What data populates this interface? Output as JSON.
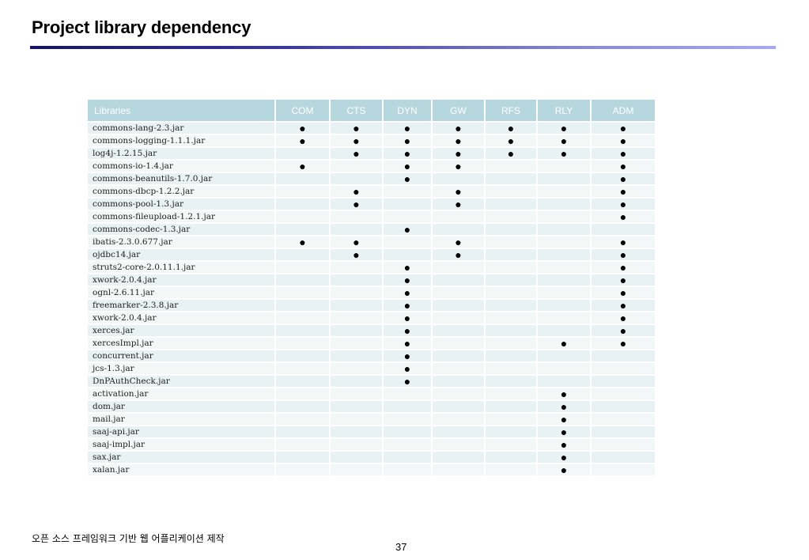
{
  "slide": {
    "title": "Project library dependency",
    "footer": "오픈 소스 프레임워크 기반 웹 어플리케이션 제작",
    "page_number": "37"
  },
  "table": {
    "headers": [
      "Libraries",
      "COM",
      "CTS",
      "DYN",
      "GW",
      "RFS",
      "RLY",
      "ADM"
    ],
    "mark_symbol": "●",
    "rows": [
      {
        "library": "commons-lang-2.3.jar",
        "marks": [
          true,
          true,
          true,
          true,
          true,
          true,
          true
        ]
      },
      {
        "library": "commons-logging-1.1.1.jar",
        "marks": [
          true,
          true,
          true,
          true,
          true,
          true,
          true
        ]
      },
      {
        "library": "log4j-1.2.15.jar",
        "marks": [
          false,
          true,
          true,
          true,
          true,
          true,
          true
        ]
      },
      {
        "library": "commons-io-1.4.jar",
        "marks": [
          true,
          false,
          true,
          true,
          false,
          false,
          true
        ]
      },
      {
        "library": "commons-beanutils-1.7.0.jar",
        "marks": [
          false,
          false,
          true,
          false,
          false,
          false,
          true
        ]
      },
      {
        "library": "commons-dbcp-1.2.2.jar",
        "marks": [
          false,
          true,
          false,
          true,
          false,
          false,
          true
        ]
      },
      {
        "library": "commons-pool-1.3.jar",
        "marks": [
          false,
          true,
          false,
          true,
          false,
          false,
          true
        ]
      },
      {
        "library": "commons-fileupload-1.2.1.jar",
        "marks": [
          false,
          false,
          false,
          false,
          false,
          false,
          true
        ]
      },
      {
        "library": "commons-codec-1.3.jar",
        "marks": [
          false,
          false,
          true,
          false,
          false,
          false,
          false
        ]
      },
      {
        "library": "ibatis-2.3.0.677.jar",
        "marks": [
          true,
          true,
          false,
          true,
          false,
          false,
          true
        ]
      },
      {
        "library": "ojdbc14.jar",
        "marks": [
          false,
          true,
          false,
          true,
          false,
          false,
          true
        ]
      },
      {
        "library": "struts2-core-2.0.11.1.jar",
        "marks": [
          false,
          false,
          true,
          false,
          false,
          false,
          true
        ]
      },
      {
        "library": "xwork-2.0.4.jar",
        "marks": [
          false,
          false,
          true,
          false,
          false,
          false,
          true
        ]
      },
      {
        "library": "ognl-2.6.11.jar",
        "marks": [
          false,
          false,
          true,
          false,
          false,
          false,
          true
        ]
      },
      {
        "library": "freemarker-2.3.8.jar",
        "marks": [
          false,
          false,
          true,
          false,
          false,
          false,
          true
        ]
      },
      {
        "library": "xwork-2.0.4.jar",
        "marks": [
          false,
          false,
          true,
          false,
          false,
          false,
          true
        ]
      },
      {
        "library": "xerces.jar",
        "marks": [
          false,
          false,
          true,
          false,
          false,
          false,
          true
        ]
      },
      {
        "library": "xercesImpl.jar",
        "marks": [
          false,
          false,
          true,
          false,
          false,
          true,
          true
        ]
      },
      {
        "library": "concurrent.jar",
        "marks": [
          false,
          false,
          true,
          false,
          false,
          false,
          false
        ]
      },
      {
        "library": "jcs-1.3.jar",
        "marks": [
          false,
          false,
          true,
          false,
          false,
          false,
          false
        ]
      },
      {
        "library": "DnPAuthCheck.jar",
        "marks": [
          false,
          false,
          true,
          false,
          false,
          false,
          false
        ]
      },
      {
        "library": "activation.jar",
        "marks": [
          false,
          false,
          false,
          false,
          false,
          true,
          false
        ]
      },
      {
        "library": "dom.jar",
        "marks": [
          false,
          false,
          false,
          false,
          false,
          true,
          false
        ]
      },
      {
        "library": "mail.jar",
        "marks": [
          false,
          false,
          false,
          false,
          false,
          true,
          false
        ]
      },
      {
        "library": "saaj-api.jar",
        "marks": [
          false,
          false,
          false,
          false,
          false,
          true,
          false
        ]
      },
      {
        "library": "saaj-impl.jar",
        "marks": [
          false,
          false,
          false,
          false,
          false,
          true,
          false
        ]
      },
      {
        "library": "sax.jar",
        "marks": [
          false,
          false,
          false,
          false,
          false,
          true,
          false
        ]
      },
      {
        "library": "xalan.jar",
        "marks": [
          false,
          false,
          false,
          false,
          false,
          true,
          false
        ]
      }
    ]
  }
}
